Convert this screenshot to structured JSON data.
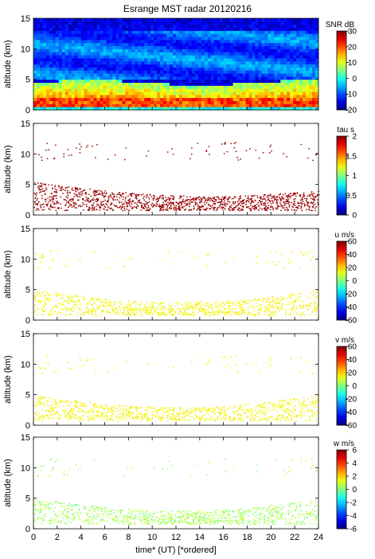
{
  "figure": {
    "title": "Esrange MST radar 20120216",
    "xlabel": "time* (UT)  [*ordered]",
    "x_ticks": [
      "0",
      "2",
      "4",
      "6",
      "8",
      "10",
      "12",
      "14",
      "16",
      "18",
      "20",
      "22",
      "24"
    ]
  },
  "chart_data": [
    {
      "type": "heatmap",
      "title": "Esrange MST radar 20120216",
      "xlabel": "",
      "ylabel": "altitude (km)",
      "xlim": [
        0,
        24
      ],
      "ylim": [
        0,
        15
      ],
      "y_ticks": [
        "0",
        "5",
        "10",
        "15"
      ],
      "colorbar_label": "SNR dB",
      "colorbar_range": [
        -20,
        30
      ],
      "colorbar_ticks": [
        "30",
        "20",
        "10",
        "0",
        "-10",
        "-20"
      ],
      "description_fields": {
        "background_snr_db": -15,
        "strong_layer_altitude_km": [
          0.5,
          4.5
        ],
        "strong_layer_snr_db": 25
      }
    },
    {
      "type": "heatmap",
      "title": "",
      "xlabel": "",
      "ylabel": "altitude (km)",
      "xlim": [
        0,
        24
      ],
      "ylim": [
        0,
        15
      ],
      "y_ticks": [
        "0",
        "5",
        "10",
        "15"
      ],
      "colorbar_label": "tau s",
      "colorbar_range": [
        0,
        2
      ],
      "colorbar_ticks": [
        "2",
        "1.5",
        "1",
        "0.5",
        "0"
      ],
      "description_fields": {
        "layer_top_km_start": 5.5,
        "layer_top_km_end": 4.0,
        "typical_value_s": 1.95,
        "upper_layer_km": [
          9,
          12
        ]
      }
    },
    {
      "type": "heatmap",
      "title": "",
      "xlabel": "",
      "ylabel": "altitude (km)",
      "xlim": [
        0,
        24
      ],
      "ylim": [
        0,
        15
      ],
      "y_ticks": [
        "0",
        "5",
        "10",
        "15"
      ],
      "colorbar_label": "u m/s",
      "colorbar_range": [
        -60,
        60
      ],
      "colorbar_ticks": [
        "60",
        "40",
        "20",
        "0",
        "-20",
        "-40",
        "-60"
      ],
      "description_fields": {
        "typical_value_ms": 15
      }
    },
    {
      "type": "heatmap",
      "title": "",
      "xlabel": "",
      "ylabel": "altitude (km)",
      "xlim": [
        0,
        24
      ],
      "ylim": [
        0,
        15
      ],
      "y_ticks": [
        "0",
        "5",
        "10",
        "15"
      ],
      "colorbar_label": "v m/s",
      "colorbar_range": [
        -60,
        60
      ],
      "colorbar_ticks": [
        "60",
        "40",
        "20",
        "0",
        "-20",
        "-40",
        "-60"
      ],
      "description_fields": {
        "typical_value_ms": 15
      }
    },
    {
      "type": "heatmap",
      "title": "",
      "xlabel": "time* (UT)  [*ordered]",
      "ylabel": "altitude (km)",
      "xlim": [
        0,
        24
      ],
      "ylim": [
        0,
        15
      ],
      "y_ticks": [
        "0",
        "5",
        "10",
        "15"
      ],
      "colorbar_label": "w m/s",
      "colorbar_range": [
        -6,
        6
      ],
      "colorbar_ticks": [
        "6",
        "4",
        "2",
        "0",
        "-2",
        "-4",
        "-6"
      ],
      "description_fields": {
        "typical_value_ms": 0.5
      }
    }
  ]
}
